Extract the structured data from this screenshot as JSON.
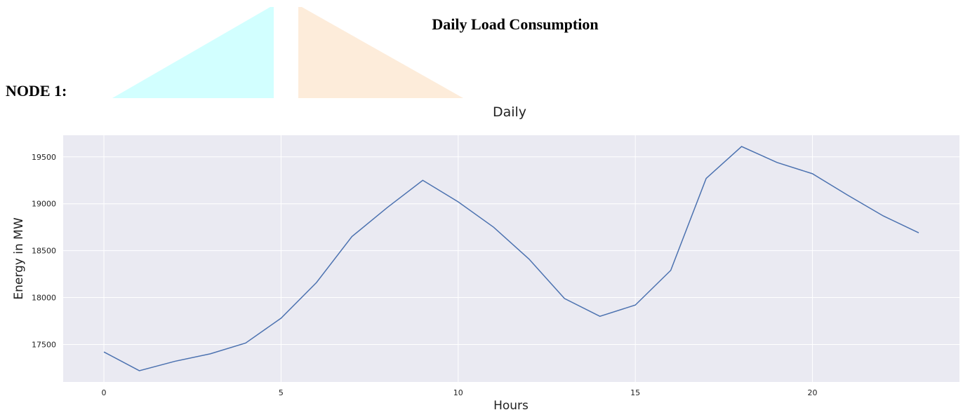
{
  "heading": "Daily  Load  Consumption",
  "node_label": "NODE 1:",
  "chart_data": {
    "type": "line",
    "title": "Daily",
    "x_label": "Hours",
    "y_label": "Energy in MW",
    "x": [
      0,
      1,
      2,
      3,
      4,
      5,
      6,
      7,
      8,
      9,
      10,
      11,
      12,
      13,
      14,
      15,
      16,
      17,
      18,
      19,
      20,
      21,
      22,
      23
    ],
    "series": [
      {
        "name": "Energy",
        "color": "#4c72b0",
        "values": [
          17420,
          17220,
          17320,
          17400,
          17515,
          17780,
          18160,
          18650,
          18960,
          19250,
          19020,
          18750,
          18410,
          17990,
          17800,
          17920,
          18290,
          19270,
          19610,
          19440,
          19320,
          19090,
          18870,
          18690
        ]
      }
    ],
    "xlim": [
      -1.15,
      24.15
    ],
    "ylim": [
      17100,
      19730
    ],
    "xticks": [
      0,
      5,
      10,
      15,
      20
    ],
    "yticks": [
      17500,
      18000,
      18500,
      19000,
      19500
    ],
    "grid": true
  }
}
